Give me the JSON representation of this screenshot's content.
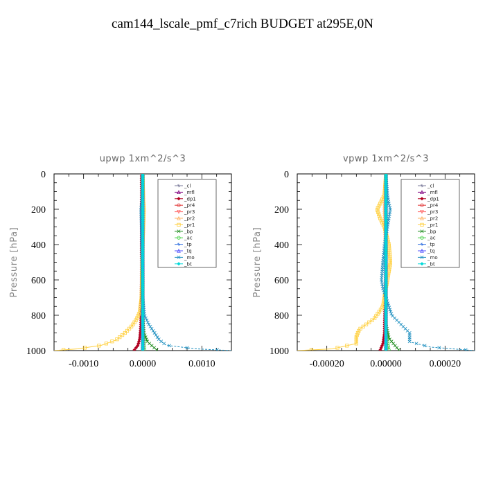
{
  "title": "cam144_lscale_pmf_c7rich  BUDGET at295E,0N",
  "chart_data": [
    {
      "type": "line",
      "title": "upwp   1xm^2/s^3",
      "ylabel": "Pressure  [hPa]",
      "ylim": [
        1000,
        0
      ],
      "xlim": [
        -0.0015,
        0.0015
      ],
      "xticks": [
        "-0.0010",
        "0.0000",
        "0.0010"
      ],
      "xtick_values": [
        -0.001,
        0,
        0.001
      ],
      "yticks": [
        "0",
        "200",
        "400",
        "600",
        "800",
        "1000"
      ],
      "ytick_values": [
        0,
        200,
        400,
        600,
        800,
        1000
      ],
      "legend_position": "top-right",
      "series": [
        {
          "name": "_cl",
          "color": "#7a7a9a",
          "y": [
            0,
            100,
            300,
            600,
            900,
            1000
          ],
          "x": [
            0,
            0,
            0,
            0,
            0,
            0
          ]
        },
        {
          "name": "_mfl",
          "color": "#800080",
          "y": [
            0,
            100,
            300,
            600,
            900,
            1000
          ],
          "x": [
            0,
            0,
            0,
            0,
            0,
            0
          ]
        },
        {
          "name": "_dp1",
          "color": "#b00020",
          "y": [
            0,
            300,
            600,
            850,
            930,
            970,
            1000
          ],
          "x": [
            -2e-05,
            -2e-05,
            -2e-05,
            -3e-05,
            -5e-05,
            -8e-05,
            -0.00015
          ]
        },
        {
          "name": "_pr4",
          "color": "#e03030",
          "y": [
            0,
            500,
            900,
            1000
          ],
          "x": [
            0,
            0,
            0,
            0
          ]
        },
        {
          "name": "_pr3",
          "color": "#ff6666",
          "y": [
            0,
            500,
            900,
            1000
          ],
          "x": [
            0,
            0,
            0,
            0
          ]
        },
        {
          "name": "_pr2",
          "color": "#ffb060",
          "y": [
            0,
            200,
            500,
            800,
            950,
            1000
          ],
          "x": [
            0,
            1e-05,
            0,
            0,
            0,
            0
          ]
        },
        {
          "name": "_pr1",
          "color": "#ffd040",
          "y": [
            0,
            150,
            200,
            300,
            500,
            700,
            780,
            820,
            860,
            900,
            940,
            970,
            990,
            1000
          ],
          "x": [
            0,
            1e-05,
            2e-05,
            1e-05,
            -1e-05,
            -2e-05,
            -5e-05,
            -0.0001,
            -0.00018,
            -0.0003,
            -0.00045,
            -0.0007,
            -0.0011,
            -0.0015
          ]
        },
        {
          "name": "_bp",
          "color": "#1a8a1a",
          "y": [
            0,
            800,
            900,
            950,
            980,
            1000
          ],
          "x": [
            0,
            0,
            2e-05,
            8e-05,
            0.00018,
            0.00025
          ]
        },
        {
          "name": "_ac",
          "color": "#40d040",
          "y": [
            0,
            900,
            1000
          ],
          "x": [
            0,
            0,
            3e-05
          ]
        },
        {
          "name": "_tp",
          "color": "#3070e0",
          "y": [
            0,
            150,
            250,
            400,
            600,
            800,
            900,
            1000
          ],
          "x": [
            0,
            -1e-05,
            -2e-05,
            -1e-05,
            0,
            0,
            0,
            0
          ]
        },
        {
          "name": "_tq",
          "color": "#5050ff",
          "y": [
            0,
            500,
            1000
          ],
          "x": [
            0,
            0,
            0
          ]
        },
        {
          "name": "_mo",
          "color": "#2090c0",
          "y": [
            0,
            150,
            200,
            300,
            500,
            700,
            800,
            850,
            900,
            940,
            970,
            990,
            1000
          ],
          "x": [
            0,
            -1e-05,
            -3e-05,
            -2e-05,
            -1e-05,
            0,
            3e-05,
            0.0001,
            0.0002,
            0.00028,
            0.0004,
            0.0009,
            0.0015
          ]
        },
        {
          "name": "_bt",
          "color": "#00d8d8",
          "y": [
            0,
            500,
            1000
          ],
          "x": [
            0,
            0,
            0
          ]
        }
      ]
    },
    {
      "type": "line",
      "title": "vpwp   1xm^2/s^3",
      "ylabel": "Pressure  [hPa]",
      "ylim": [
        1000,
        0
      ],
      "xlim": [
        -0.0003,
        0.0003
      ],
      "xticks": [
        "-0.00020",
        "0.00000",
        "0.00020"
      ],
      "xtick_values": [
        -0.0002,
        0,
        0.0002
      ],
      "yticks": [
        "0",
        "200",
        "400",
        "600",
        "800",
        "1000"
      ],
      "ytick_values": [
        0,
        200,
        400,
        600,
        800,
        1000
      ],
      "legend_position": "top-right",
      "series": [
        {
          "name": "_cl",
          "color": "#7a7a9a",
          "y": [
            0,
            100,
            300,
            600,
            900,
            1000
          ],
          "x": [
            0,
            0,
            0,
            0,
            0,
            0
          ]
        },
        {
          "name": "_mfl",
          "color": "#800080",
          "y": [
            0,
            100,
            300,
            600,
            900,
            1000
          ],
          "x": [
            0,
            0,
            0,
            0,
            0,
            0
          ]
        },
        {
          "name": "_dp1",
          "color": "#b00020",
          "y": [
            0,
            500,
            900,
            960,
            1000
          ],
          "x": [
            0,
            0,
            -5e-06,
            -1e-05,
            -2e-05
          ]
        },
        {
          "name": "_pr4",
          "color": "#e03030",
          "y": [
            0,
            500,
            1000
          ],
          "x": [
            0,
            0,
            0
          ]
        },
        {
          "name": "_pr3",
          "color": "#ff6666",
          "y": [
            0,
            500,
            1000
          ],
          "x": [
            0,
            0,
            0
          ]
        },
        {
          "name": "_pr2",
          "color": "#ffb060",
          "y": [
            0,
            200,
            500,
            800,
            1000
          ],
          "x": [
            0,
            -5e-06,
            0,
            0,
            0
          ]
        },
        {
          "name": "_pr1",
          "color": "#ffd040",
          "y": [
            0,
            120,
            170,
            200,
            250,
            300,
            400,
            500,
            550,
            650,
            750,
            820,
            880,
            920,
            960,
            990,
            1000
          ],
          "x": [
            0,
            -5e-06,
            -2e-05,
            -3e-05,
            -2e-05,
            -5e-06,
            1e-05,
            1.5e-05,
            1e-05,
            0,
            -1e-05,
            -4e-05,
            -9e-05,
            -0.0001,
            -0.0001,
            -0.00018,
            -0.0003
          ]
        },
        {
          "name": "_bp",
          "color": "#1a8a1a",
          "y": [
            0,
            850,
            930,
            970,
            1000
          ],
          "x": [
            0,
            0,
            1e-05,
            3e-05,
            4.5e-05
          ]
        },
        {
          "name": "_ac",
          "color": "#40d040",
          "y": [
            0,
            900,
            1000
          ],
          "x": [
            0,
            0,
            1e-05
          ]
        },
        {
          "name": "_tp",
          "color": "#3070e0",
          "y": [
            0,
            500,
            1000
          ],
          "x": [
            0,
            0,
            0
          ]
        },
        {
          "name": "_tq",
          "color": "#5050ff",
          "y": [
            0,
            500,
            1000
          ],
          "x": [
            0,
            0,
            0
          ]
        },
        {
          "name": "_mo",
          "color": "#2090c0",
          "y": [
            0,
            120,
            170,
            200,
            250,
            300,
            400,
            500,
            600,
            650,
            700,
            800,
            850,
            900,
            950,
            980,
            1000
          ],
          "x": [
            0,
            5e-06,
            1e-05,
            1.5e-05,
            1e-05,
            5e-06,
            -5e-06,
            -1e-05,
            -1.5e-05,
            -1e-05,
            0,
            2e-05,
            5e-05,
            8e-05,
            8e-05,
            0.00015,
            0.0003
          ]
        },
        {
          "name": "_bt",
          "color": "#00d8d8",
          "y": [
            0,
            500,
            1000
          ],
          "x": [
            0,
            0,
            0
          ]
        }
      ]
    }
  ]
}
